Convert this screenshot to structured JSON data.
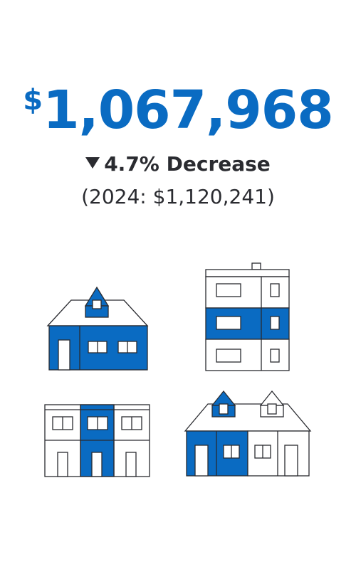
{
  "price": {
    "currency": "$",
    "amount": "1,067,968"
  },
  "change": {
    "label": "4.7% Decrease"
  },
  "previous": {
    "label": "(2024: $1,120,241)"
  },
  "colors": {
    "accent": "#0a6bc2",
    "text": "#2a2b30",
    "outline": "#2a2b30"
  },
  "illustrations": [
    "detached-house-icon",
    "apartment-building-icon",
    "townhouse-row-icon",
    "semi-detached-house-icon"
  ]
}
